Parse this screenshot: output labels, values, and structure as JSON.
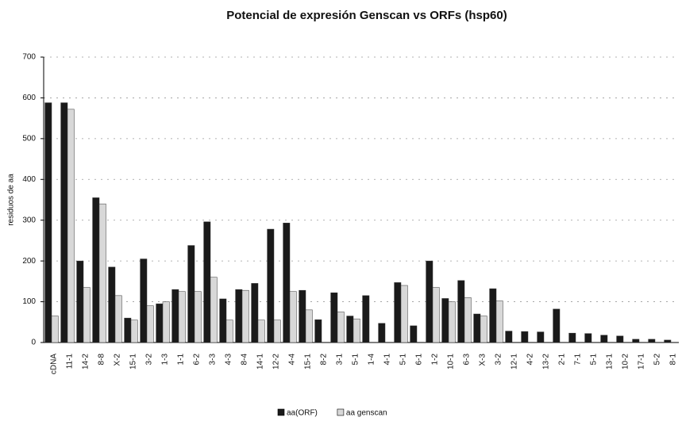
{
  "chart_data": {
    "type": "bar",
    "title": "Potencial de expresión Genscan vs ORFs (hsp60)",
    "y_label": "residuos de aa",
    "categories": [
      "cDNA",
      "11-1",
      "14-2",
      "8-8",
      "X-2",
      "15-1",
      "3-2",
      "1-3",
      "1-1",
      "6-2",
      "3-3",
      "4-3",
      "8-4",
      "14-1",
      "12-2",
      "4-4",
      "15-1",
      "8-2",
      "3-1",
      "5-1",
      "1-4",
      "4-1",
      "5-1",
      "6-1",
      "1-2",
      "10-1",
      "6-3",
      "X-3",
      "3-2",
      "12-1",
      "4-2",
      "13-2",
      "2-1",
      "7-1",
      "5-1",
      "13-1",
      "10-2",
      "17-1",
      "5-2",
      "8-1"
    ],
    "series": [
      {
        "name": "aa(ORF)",
        "color": "#1a1a1a",
        "values": [
          588,
          588,
          200,
          355,
          185,
          60,
          205,
          95,
          130,
          238,
          296,
          107,
          130,
          145,
          278,
          293,
          128,
          56,
          122,
          65,
          115,
          47,
          147,
          41,
          200,
          108,
          152,
          70,
          132,
          28,
          27,
          26,
          82,
          23,
          22,
          18,
          16,
          8,
          8,
          6
        ]
      },
      {
        "name": "aa genscan",
        "color": "#d8d8d8",
        "values": [
          65,
          572,
          135,
          340,
          115,
          55,
          90,
          100,
          125,
          125,
          160,
          55,
          128,
          55,
          55,
          125,
          80,
          0,
          75,
          58,
          0,
          0,
          140,
          0,
          135,
          100,
          110,
          65,
          102,
          0,
          0,
          0,
          0,
          0,
          0,
          0,
          0,
          0,
          0,
          0
        ]
      }
    ],
    "ylim": [
      0,
      700
    ],
    "yticks": [
      0,
      100,
      200,
      300,
      400,
      500,
      600,
      700
    ],
    "grid": true,
    "legend": "bottom"
  }
}
